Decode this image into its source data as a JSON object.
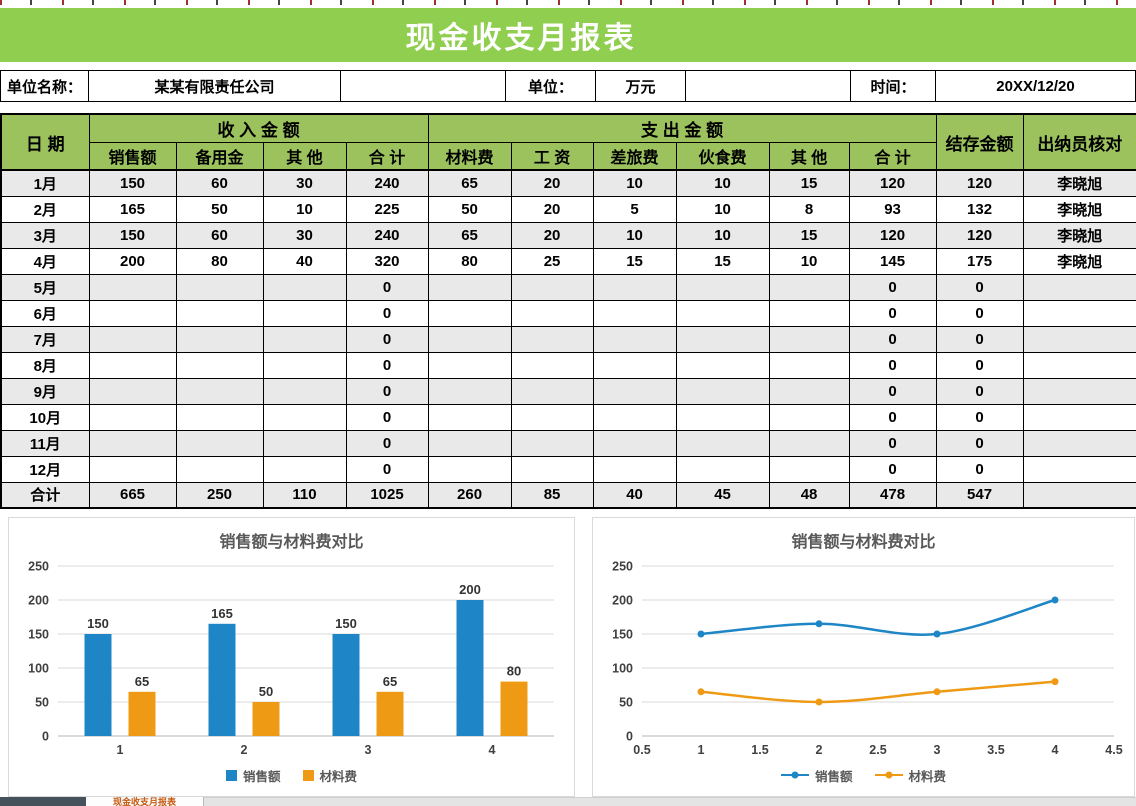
{
  "title": "现金收支月报表",
  "sheet_tab": "现金收支月报表",
  "info": {
    "unit_name_label": "单位名称：",
    "unit_name": "某某有限责任公司",
    "unit_label": "单位：",
    "unit": "万元",
    "time_label": "时间：",
    "time": "20XX/12/20"
  },
  "colors": {
    "title_green": "#8fce4e",
    "header_green": "#9cc25e",
    "series_blue": "#1e86c6",
    "series_orange": "#ee9a15"
  },
  "table": {
    "header": {
      "date": "日 期",
      "income_group": "收 入 金 额",
      "expense_group": "支 出 金 额",
      "income_cols": [
        "销售额",
        "备用金",
        "其 他",
        "合 计"
      ],
      "expense_cols": [
        "材料费",
        "工 资",
        "差旅费",
        "伙食费",
        "其 他",
        "合 计"
      ],
      "balance": "结存金额",
      "cashier": "出纳员核对"
    },
    "rows": [
      {
        "date": "1月",
        "income": [
          "150",
          "60",
          "30",
          "240"
        ],
        "expense": [
          "65",
          "20",
          "10",
          "10",
          "15",
          "120"
        ],
        "balance": "120",
        "cashier": "李晓旭"
      },
      {
        "date": "2月",
        "income": [
          "165",
          "50",
          "10",
          "225"
        ],
        "expense": [
          "50",
          "20",
          "5",
          "10",
          "8",
          "93"
        ],
        "balance": "132",
        "cashier": "李晓旭"
      },
      {
        "date": "3月",
        "income": [
          "150",
          "60",
          "30",
          "240"
        ],
        "expense": [
          "65",
          "20",
          "10",
          "10",
          "15",
          "120"
        ],
        "balance": "120",
        "cashier": "李晓旭"
      },
      {
        "date": "4月",
        "income": [
          "200",
          "80",
          "40",
          "320"
        ],
        "expense": [
          "80",
          "25",
          "15",
          "15",
          "10",
          "145"
        ],
        "balance": "175",
        "cashier": "李晓旭"
      },
      {
        "date": "5月",
        "income": [
          "",
          "",
          "",
          "0"
        ],
        "expense": [
          "",
          "",
          "",
          "",
          "",
          "0"
        ],
        "balance": "0",
        "cashier": ""
      },
      {
        "date": "6月",
        "income": [
          "",
          "",
          "",
          "0"
        ],
        "expense": [
          "",
          "",
          "",
          "",
          "",
          "0"
        ],
        "balance": "0",
        "cashier": ""
      },
      {
        "date": "7月",
        "income": [
          "",
          "",
          "",
          "0"
        ],
        "expense": [
          "",
          "",
          "",
          "",
          "",
          "0"
        ],
        "balance": "0",
        "cashier": ""
      },
      {
        "date": "8月",
        "income": [
          "",
          "",
          "",
          "0"
        ],
        "expense": [
          "",
          "",
          "",
          "",
          "",
          "0"
        ],
        "balance": "0",
        "cashier": ""
      },
      {
        "date": "9月",
        "income": [
          "",
          "",
          "",
          "0"
        ],
        "expense": [
          "",
          "",
          "",
          "",
          "",
          "0"
        ],
        "balance": "0",
        "cashier": ""
      },
      {
        "date": "10月",
        "income": [
          "",
          "",
          "",
          "0"
        ],
        "expense": [
          "",
          "",
          "",
          "",
          "",
          "0"
        ],
        "balance": "0",
        "cashier": ""
      },
      {
        "date": "11月",
        "income": [
          "",
          "",
          "",
          "0"
        ],
        "expense": [
          "",
          "",
          "",
          "",
          "",
          "0"
        ],
        "balance": "0",
        "cashier": ""
      },
      {
        "date": "12月",
        "income": [
          "",
          "",
          "",
          "0"
        ],
        "expense": [
          "",
          "",
          "",
          "",
          "",
          "0"
        ],
        "balance": "0",
        "cashier": ""
      },
      {
        "date": "合计",
        "income": [
          "665",
          "250",
          "110",
          "1025"
        ],
        "expense": [
          "260",
          "85",
          "40",
          "45",
          "48",
          "478"
        ],
        "balance": "547",
        "cashier": ""
      }
    ]
  },
  "chart_data": [
    {
      "type": "bar",
      "title": "销售额与材料费对比",
      "categories": [
        "1",
        "2",
        "3",
        "4"
      ],
      "series": [
        {
          "name": "销售额",
          "color": "#1e86c6",
          "values": [
            150,
            165,
            150,
            200
          ]
        },
        {
          "name": "材料费",
          "color": "#ee9a15",
          "values": [
            65,
            50,
            65,
            80
          ]
        }
      ],
      "ylim": [
        0,
        250
      ],
      "yticks": [
        0,
        50,
        100,
        150,
        200,
        250
      ],
      "grid": true,
      "legend_position": "bottom"
    },
    {
      "type": "line",
      "title": "销售额与材料费对比",
      "x": [
        1,
        2,
        3,
        4
      ],
      "series": [
        {
          "name": "销售额",
          "color": "#1e86c6",
          "values": [
            150,
            165,
            150,
            200
          ]
        },
        {
          "name": "材料费",
          "color": "#ee9a15",
          "values": [
            65,
            50,
            65,
            80
          ]
        }
      ],
      "xlim": [
        0.5,
        4.5
      ],
      "xticks": [
        0.5,
        1,
        1.5,
        2,
        2.5,
        3,
        3.5,
        4,
        4.5
      ],
      "ylim": [
        0,
        250
      ],
      "yticks": [
        0,
        50,
        100,
        150,
        200,
        250
      ],
      "grid": true,
      "smooth": true,
      "legend_position": "bottom"
    }
  ]
}
